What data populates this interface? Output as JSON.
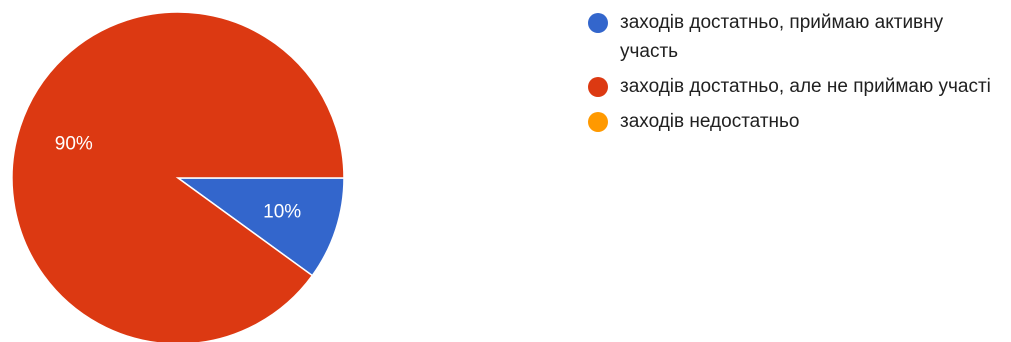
{
  "chart_data": {
    "type": "pie",
    "title": "",
    "categories": [
      "заходів достатньо, приймаю активну участь",
      "заходів достатньо, але не приймаю участі",
      "заходів недостатньо"
    ],
    "values": [
      10,
      90,
      0
    ],
    "labels": [
      "10%",
      "90%",
      ""
    ],
    "colors": [
      "#3366cc",
      "#dc3912",
      "#ff9900"
    ],
    "legend_position": "right"
  }
}
